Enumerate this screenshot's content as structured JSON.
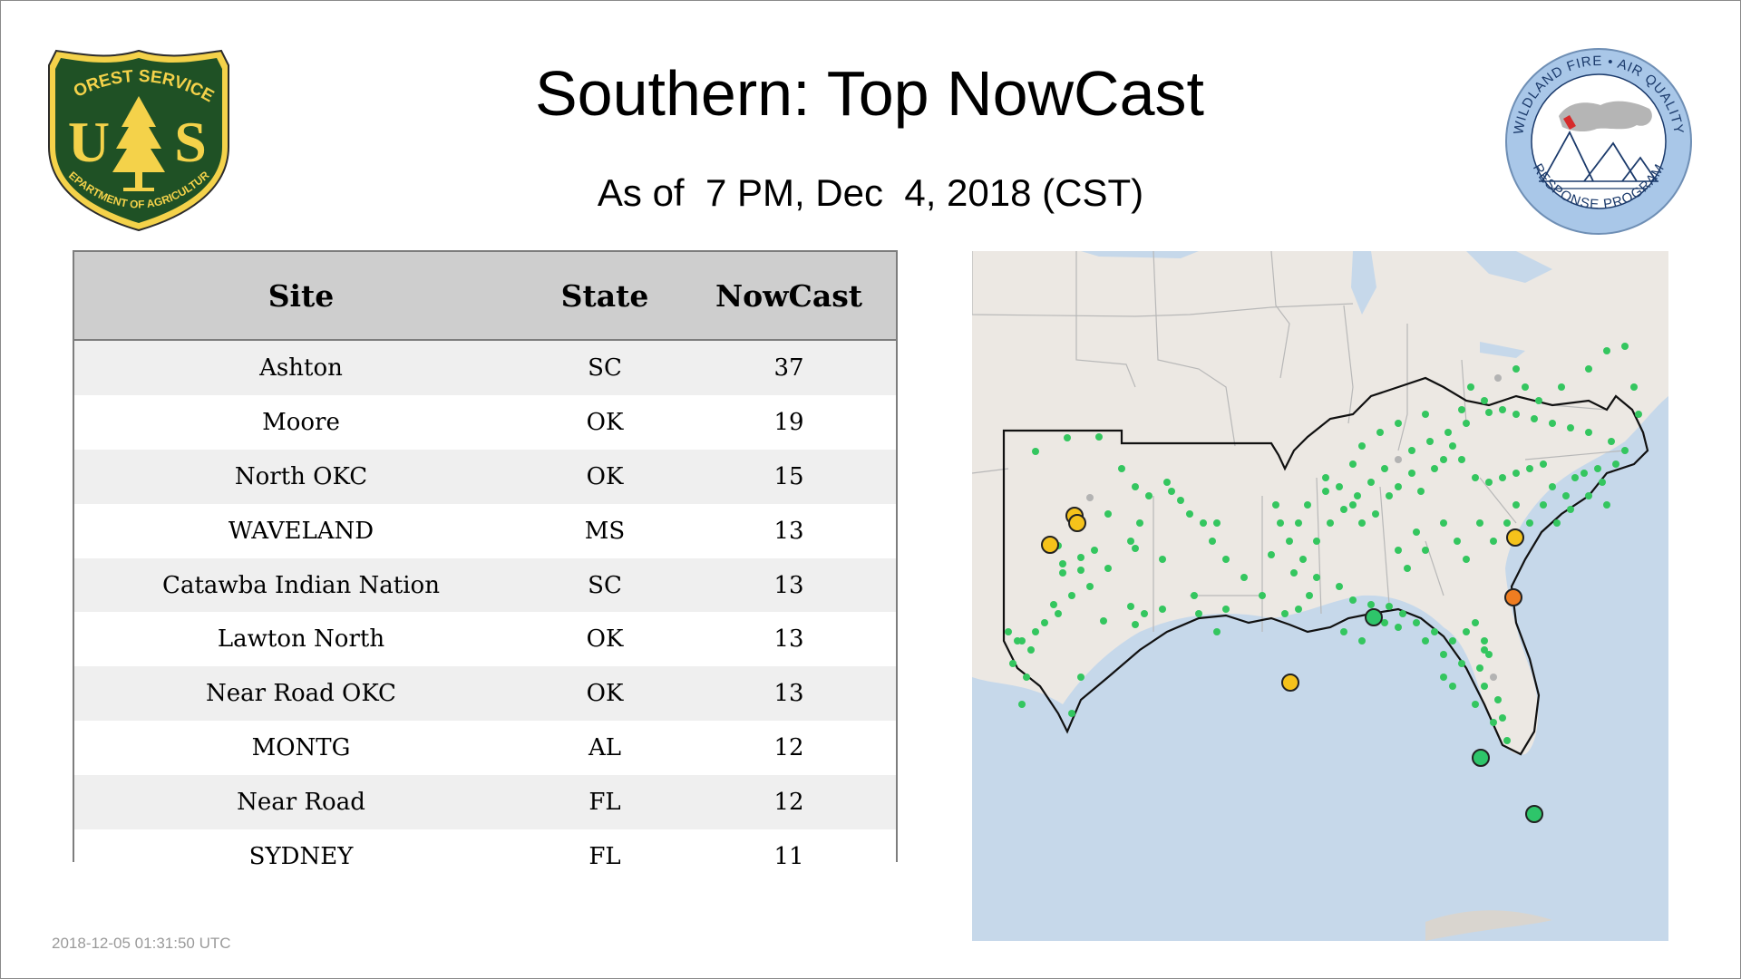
{
  "header": {
    "title": "Southern: Top NowCast",
    "subtitle": "As of  7 PM, Dec  4, 2018 (CST)"
  },
  "logos": {
    "forest_service": {
      "arc_top": "FOREST SERVICE",
      "letters": "U S",
      "arc_bottom": "DEPARTMENT OF AGRICULTURE",
      "colors": {
        "shield": "#1f5125",
        "border": "#f4d24a",
        "tree": "#f4d24a"
      }
    },
    "wildland_fire": {
      "arc_top": "WILDLAND FIRE • AIR QUALITY",
      "arc_bottom": "RESPONSE PROGRAM",
      "colors": {
        "ring": "#a9c7e8",
        "text": "#1b3a6b",
        "smoke": "#b5b5b5",
        "flame": "#d62b2b"
      }
    }
  },
  "table": {
    "headers": [
      "Site",
      "State",
      "NowCast"
    ],
    "rows": [
      {
        "site": "Ashton",
        "state": "SC",
        "nowcast": "37"
      },
      {
        "site": "Moore",
        "state": "OK",
        "nowcast": "19"
      },
      {
        "site": "North OKC",
        "state": "OK",
        "nowcast": "15"
      },
      {
        "site": "WAVELAND",
        "state": "MS",
        "nowcast": "13"
      },
      {
        "site": "Catawba Indian Nation",
        "state": "SC",
        "nowcast": "13"
      },
      {
        "site": "Lawton North",
        "state": "OK",
        "nowcast": "13"
      },
      {
        "site": "Near Road OKC",
        "state": "OK",
        "nowcast": "13"
      },
      {
        "site": "MONTG",
        "state": "AL",
        "nowcast": "12"
      },
      {
        "site": "Near Road",
        "state": "FL",
        "nowcast": "12"
      },
      {
        "site": "SYDNEY",
        "state": "FL",
        "nowcast": "11"
      }
    ]
  },
  "map": {
    "colors": {
      "land": "#ece8e3",
      "water": "#c6d8ea",
      "state_border": "#b8b8b8",
      "region_border": "#111111",
      "monitor_small": "#34c65f",
      "aqi_good": "#2ec56a",
      "aqi_moderate": "#f5c21b",
      "aqi_usg": "#ef7d21",
      "inactive": "#b3b3b3"
    }
  },
  "footer": {
    "timestamp": "2018-12-05 01:31:50 UTC"
  }
}
